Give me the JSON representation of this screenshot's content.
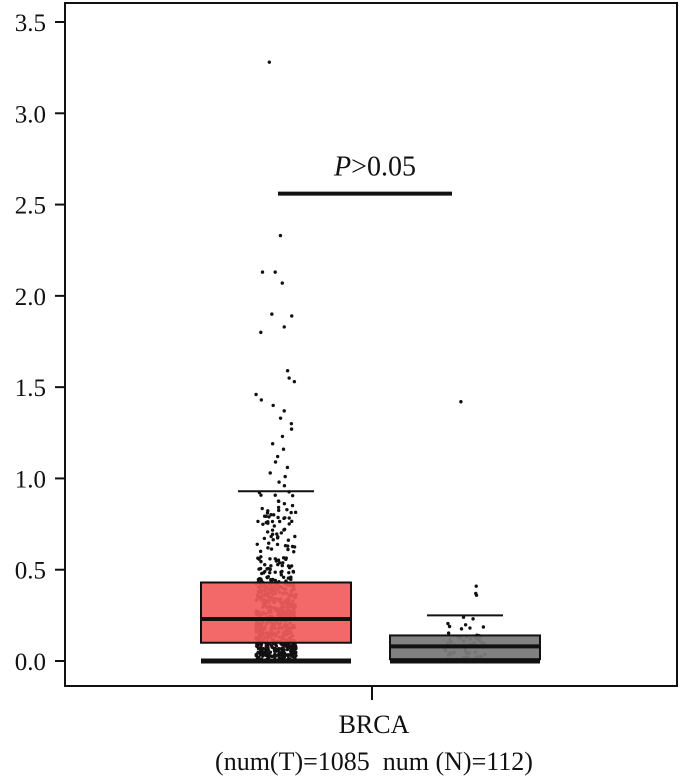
{
  "chart_data": {
    "type": "box",
    "ylim": [
      0,
      3.5
    ],
    "yticks": [
      "0.0",
      "0.5",
      "1.0",
      "1.5",
      "2.0",
      "2.5",
      "3.0",
      "3.5"
    ],
    "xlabel_line1": "BRCA",
    "xlabel_line2": "(num(T)=1085  num (N)=112)",
    "annotation": {
      "italic": "P",
      "rest": ">0.05"
    },
    "significance_y": 2.56,
    "grid": false,
    "series": [
      {
        "color": "#f25c5c",
        "n": 1085,
        "whisker_low": 0.0,
        "q1": 0.1,
        "median": 0.23,
        "q3": 0.43,
        "whisker_high": 0.93,
        "outliers": [
          3.28,
          2.33,
          2.13,
          2.13,
          2.07,
          1.9,
          1.89,
          1.83,
          1.8,
          1.59,
          1.55,
          1.53,
          1.46,
          1.43,
          1.4,
          1.37,
          1.33,
          1.3,
          1.27,
          1.23,
          1.19,
          1.16,
          1.12,
          1.09,
          1.06,
          1.03,
          1.01,
          0.98,
          0.96
        ]
      },
      {
        "color": "#7a7a7a",
        "n": 112,
        "whisker_low": 0.0,
        "q1": 0.01,
        "median": 0.08,
        "q3": 0.14,
        "whisker_high": 0.25,
        "outliers": [
          1.42,
          0.41,
          0.37,
          0.36
        ]
      }
    ]
  }
}
